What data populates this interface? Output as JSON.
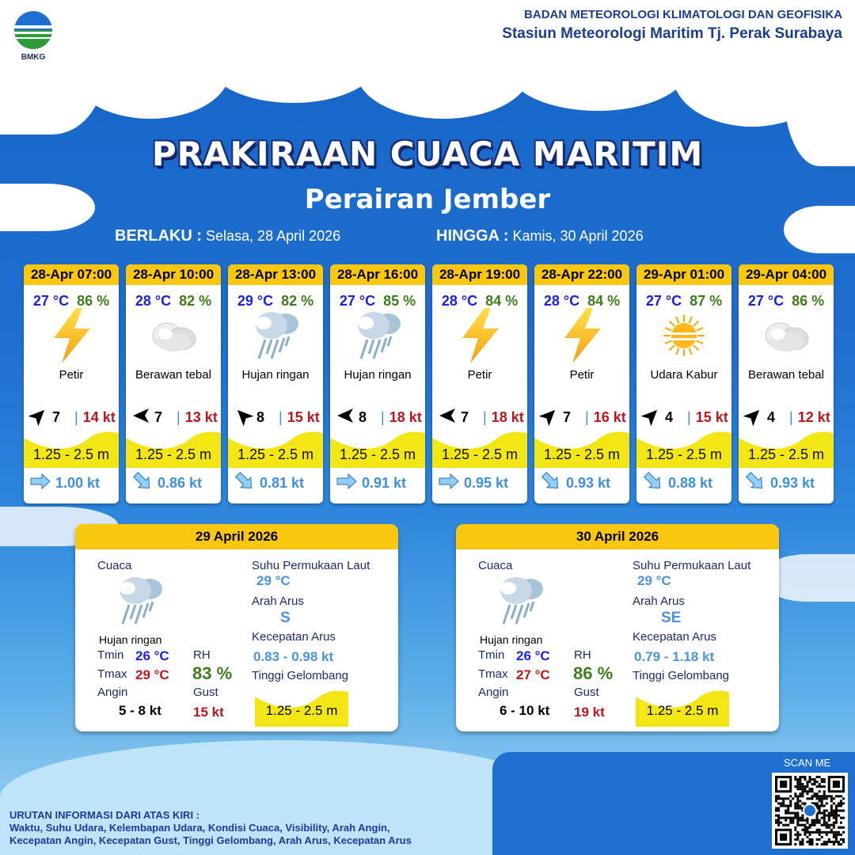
{
  "header": {
    "logo_text": "BMKG",
    "org_line1": "BADAN METEOROLOGI KLIMATOLOGI DAN GEOFISIKA",
    "org_line2": "Stasiun Meteorologi Maritim Tj. Perak Surabaya"
  },
  "title": "PRAKIRAAN CUACA MARITIM",
  "subtitle": "Perairan Jember",
  "validity": {
    "from_label": "BERLAKU :",
    "from_value": "Selasa, 28 April 2026",
    "to_label": "HINGGA :",
    "to_value": "Kamis, 30 April 2026"
  },
  "forecasts": [
    {
      "time": "28-Apr 07:00",
      "temp": "27 °C",
      "rh": "86 %",
      "icon": "lightning-icon",
      "weather": "Petir",
      "wind_dir_deg": 45,
      "wind": "7",
      "gust": "14 kt",
      "wave": "1.25 - 2.5 m",
      "current_dir_deg": 90,
      "current": "1.00 kt"
    },
    {
      "time": "28-Apr 10:00",
      "temp": "28 °C",
      "rh": "82 %",
      "icon": "cloud-icon",
      "weather": "Berawan tebal",
      "wind_dir_deg": 270,
      "wind": "7",
      "gust": "13 kt",
      "wave": "1.25 - 2.5 m",
      "current_dir_deg": 135,
      "current": "0.86 kt"
    },
    {
      "time": "28-Apr 13:00",
      "temp": "29 °C",
      "rh": "82 %",
      "icon": "rain-cloud-icon",
      "weather": "Hujan ringan",
      "wind_dir_deg": 315,
      "wind": "8",
      "gust": "15 kt",
      "wave": "1.25 - 2.5 m",
      "current_dir_deg": 135,
      "current": "0.81 kt"
    },
    {
      "time": "28-Apr 16:00",
      "temp": "27 °C",
      "rh": "85 %",
      "icon": "rain-cloud-icon",
      "weather": "Hujan ringan",
      "wind_dir_deg": 270,
      "wind": "8",
      "gust": "18 kt",
      "wave": "1.25 - 2.5 m",
      "current_dir_deg": 90,
      "current": "0.91 kt"
    },
    {
      "time": "28-Apr 19:00",
      "temp": "28 °C",
      "rh": "84 %",
      "icon": "lightning-icon",
      "weather": "Petir",
      "wind_dir_deg": 270,
      "wind": "7",
      "gust": "18 kt",
      "wave": "1.25 - 2.5 m",
      "current_dir_deg": 90,
      "current": "0.95 kt"
    },
    {
      "time": "28-Apr 22:00",
      "temp": "28 °C",
      "rh": "84 %",
      "icon": "lightning-icon",
      "weather": "Petir",
      "wind_dir_deg": 45,
      "wind": "7",
      "gust": "16 kt",
      "wave": "1.25 - 2.5 m",
      "current_dir_deg": 135,
      "current": "0.93 kt"
    },
    {
      "time": "29-Apr 01:00",
      "temp": "27 °C",
      "rh": "87 %",
      "icon": "haze-sun-icon",
      "weather": "Udara Kabur",
      "wind_dir_deg": 45,
      "wind": "4",
      "gust": "15 kt",
      "wave": "1.25 - 2.5 m",
      "current_dir_deg": 135,
      "current": "0.88 kt"
    },
    {
      "time": "29-Apr 04:00",
      "temp": "27 °C",
      "rh": "86 %",
      "icon": "cloud-icon",
      "weather": "Berawan tebal",
      "wind_dir_deg": 45,
      "wind": "4",
      "gust": "12 kt",
      "wave": "1.25 - 2.5 m",
      "current_dir_deg": 135,
      "current": "0.93 kt"
    }
  ],
  "daily_labels": {
    "weather": "Cuaca",
    "sst": "Suhu Permukaan Laut",
    "current_dir": "Arah Arus",
    "current_speed": "Kecepatan Arus",
    "wave": "Tinggi Gelombang",
    "tmin": "Tmin",
    "tmax": "Tmax",
    "rh": "RH",
    "wind": "Angin",
    "gust": "Gust"
  },
  "daily": [
    {
      "date": "29 April 2026",
      "weather": "Hujan ringan",
      "tmin": "26 °C",
      "tmax": "29 °C",
      "rh": "83 %",
      "wind": "5  - 8 kt",
      "gust": "15 kt",
      "sst": "29 °C",
      "current_dir": "S",
      "current_dir_deg": 180,
      "current_speed": "0.83  - 0.98 kt",
      "wave": "1.25 - 2.5 m"
    },
    {
      "date": "30 April 2026",
      "weather": "Hujan ringan",
      "tmin": "26 °C",
      "tmax": "27 °C",
      "rh": "86 %",
      "wind": "6  - 10 kt",
      "gust": "19 kt",
      "sst": "29 °C",
      "current_dir": "SE",
      "current_dir_deg": 135,
      "current_speed": "0.79  - 1.18 kt",
      "wave": "1.25 - 2.5 m"
    }
  ],
  "scan_label": "SCAN ME",
  "footer": {
    "title": "URUTAN INFORMASI DARI ATAS KIRI :",
    "line1": "Waktu, Suhu Udara, Kelembapan Udara, Kondisi Cuaca, Visibility, Arah Angin,",
    "line2": "Kecepatan Angin, Kecepatan Gust, Tinggi Gelombang, Arah Arus, Kecepatan Arus"
  },
  "colors": {
    "header_yellow": "#f9c80e",
    "wave_yellow": "#f2e614",
    "temp_blue": "#1a22e6",
    "rh_green": "#3e7d1a",
    "gust_red": "#c0141c",
    "current_blue": "#3d8fe0"
  }
}
